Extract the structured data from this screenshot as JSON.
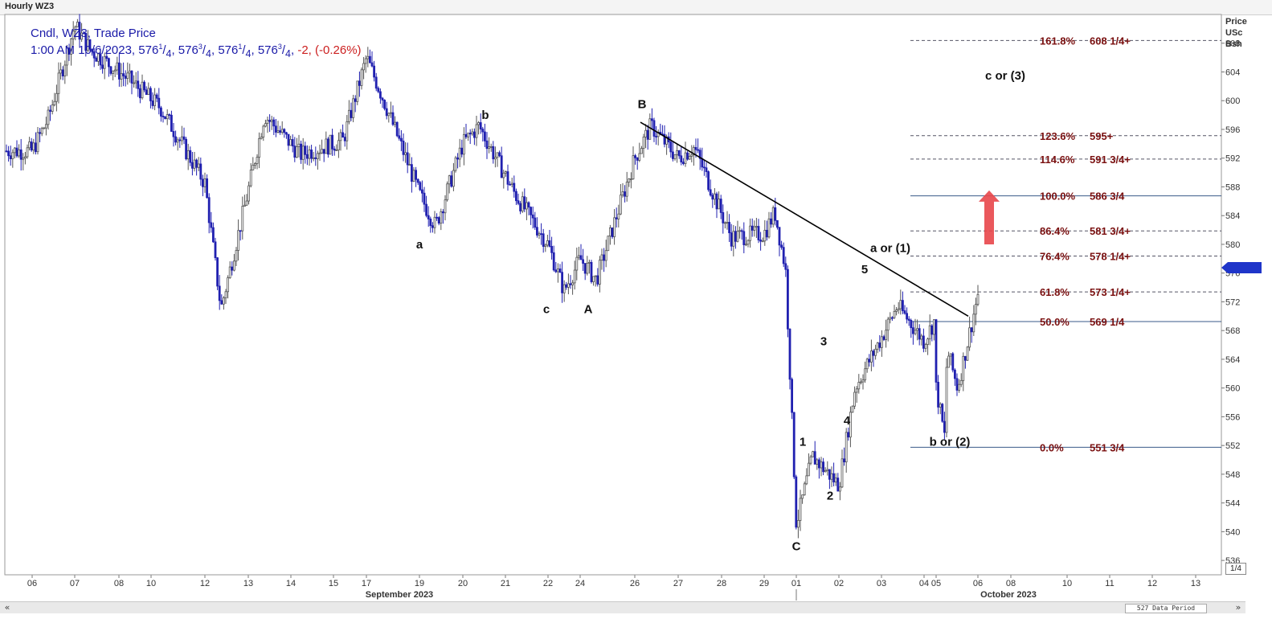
{
  "window": {
    "title": "Hourly WZ3"
  },
  "legend": {
    "line1": "Cndl, WZ3, Trade Price",
    "time": "1:00 AM 10/6/2023,",
    "ohlc": [
      {
        "int": "576",
        "frac": "1",
        "den": "4"
      },
      {
        "int": "576",
        "frac": "3",
        "den": "4"
      },
      {
        "int": "576",
        "frac": "1",
        "den": "4"
      },
      {
        "int": "576",
        "frac": "3",
        "den": "4"
      }
    ],
    "change": "-2, (-0.26%)"
  },
  "axis_header": {
    "l1": "Price",
    "l2": "USc",
    "l3": "Bsh"
  },
  "scale_button": "1/4",
  "scrollbar": {
    "period_label": "527 Data Period",
    "left_icon": "double-left-arrow-icon",
    "right_icon": "double-right-arrow-icon"
  },
  "chart_data": {
    "type": "candlestick",
    "title": "Hourly WZ3",
    "ylim": [
      534,
      612
    ],
    "y_ticks": [
      536,
      540,
      544,
      548,
      552,
      556,
      560,
      564,
      568,
      572,
      576,
      580,
      584,
      588,
      592,
      596,
      600,
      604,
      608
    ],
    "last_price_marker": 576.75,
    "x_tick_labels": [
      "06",
      "07",
      "08",
      "10",
      "12",
      "13",
      "14",
      "15",
      "17",
      "19",
      "20",
      "21",
      "22",
      "24",
      "26",
      "27",
      "28",
      "29",
      "01",
      "02",
      "03",
      "04",
      "05",
      "06",
      "08",
      "10",
      "11",
      "12",
      "13"
    ],
    "x_month_labels": [
      "September 2023",
      "October 2023"
    ],
    "price_path": [
      [
        "09-06",
        593.0
      ],
      [
        "09-06",
        597.5
      ],
      [
        "09-07",
        610.5
      ],
      [
        "09-07",
        607.0
      ],
      [
        "09-08",
        603.0
      ],
      [
        "09-10",
        599.0
      ],
      [
        "09-12",
        588.5
      ],
      [
        "09-12",
        571.0
      ],
      [
        "09-13",
        587.5
      ],
      [
        "09-13",
        598.0
      ],
      [
        "09-14",
        592.5
      ],
      [
        "09-15",
        594.5
      ],
      [
        "09-17",
        606.0
      ],
      [
        "09-17",
        600.5
      ],
      [
        "09-19",
        587.0
      ],
      [
        "09-19",
        582.5
      ],
      [
        "09-20",
        594.0
      ],
      [
        "09-20",
        596.5
      ],
      [
        "09-21",
        587.0
      ],
      [
        "09-22",
        580.0
      ],
      [
        "09-22",
        573.5
      ],
      [
        "09-24",
        578.0
      ],
      [
        "09-24",
        575.0
      ],
      [
        "09-26",
        592.0
      ],
      [
        "09-26",
        596.5
      ],
      [
        "09-27",
        592.0
      ],
      [
        "09-27",
        593.5
      ],
      [
        "09-28",
        581.0
      ],
      [
        "09-29",
        581.5
      ],
      [
        "09-29",
        584.5
      ],
      [
        "09-29",
        576.5
      ],
      [
        "10-01",
        541.0
      ],
      [
        "10-01",
        550.5
      ],
      [
        "10-02",
        546.5
      ],
      [
        "10-02",
        560.0
      ],
      [
        "10-03",
        567.0
      ],
      [
        "10-03",
        571.5
      ],
      [
        "10-04",
        566.5
      ],
      [
        "10-04",
        569.5
      ],
      [
        "10-04",
        552.5
      ],
      [
        "10-05",
        560.0
      ],
      [
        "10-05",
        565.5
      ],
      [
        "10-05",
        560.0
      ],
      [
        "10-06",
        573.0
      ],
      [
        "10-06",
        580.0
      ],
      [
        "10-06",
        576.75
      ]
    ],
    "trendline": {
      "from": [
        "09-26",
        597.0
      ],
      "to": [
        "10-06",
        570.0
      ]
    },
    "fibonacci": [
      {
        "label": "0.0%",
        "price_label": "551 3/4",
        "value": 551.75,
        "style": "solid"
      },
      {
        "label": "50.0%",
        "price_label": "569 1/4",
        "value": 569.25,
        "style": "solid"
      },
      {
        "label": "61.8%",
        "price_label": "573 1/4+",
        "value": 573.375,
        "style": "dashed"
      },
      {
        "label": "76.4%",
        "price_label": "578 1/4+",
        "value": 578.375,
        "style": "dashed"
      },
      {
        "label": "86.4%",
        "price_label": "581 3/4+",
        "value": 581.875,
        "style": "dashed"
      },
      {
        "label": "100.0%",
        "price_label": "586 3/4",
        "value": 586.75,
        "style": "solid"
      },
      {
        "label": "114.6%",
        "price_label": "591 3/4+",
        "value": 591.875,
        "style": "dashed"
      },
      {
        "label": "123.6%",
        "price_label": "595+",
        "value": 595.125,
        "style": "dashed"
      },
      {
        "label": "161.8%",
        "price_label": "608 1/4+",
        "value": 608.375,
        "style": "dashed"
      }
    ],
    "wave_labels": [
      {
        "text": "a",
        "x": "09-19",
        "y": 580.0
      },
      {
        "text": "b",
        "x": "09-20",
        "y": 598.0
      },
      {
        "text": "c",
        "x": "09-22",
        "y": 571.0
      },
      {
        "text": "A",
        "x": "09-24",
        "y": 571.0
      },
      {
        "text": "B",
        "x": "09-26",
        "y": 599.5
      },
      {
        "text": "C",
        "x": "10-01",
        "y": 538.0
      },
      {
        "text": "1",
        "x": "10-01",
        "y": 552.5
      },
      {
        "text": "2",
        "x": "10-02",
        "y": 545.0
      },
      {
        "text": "3",
        "x": "10-02",
        "y": 566.5
      },
      {
        "text": "4",
        "x": "10-03",
        "y": 555.5
      },
      {
        "text": "5",
        "x": "10-03",
        "y": 576.5
      },
      {
        "text": "a or (1)",
        "x": "10-03",
        "y": 579.5
      },
      {
        "text": "b or (2)",
        "x": "10-05",
        "y": 552.5
      },
      {
        "text": "c or (3)",
        "x": "10-06",
        "y": 603.5
      }
    ],
    "arrow": {
      "direction": "up",
      "color": "#e8464a"
    },
    "colors": {
      "up": "#555555",
      "down": "#2020b0",
      "fib_text": "#7a1010",
      "trendline": "#000000",
      "marker": "#1f35c9"
    }
  }
}
